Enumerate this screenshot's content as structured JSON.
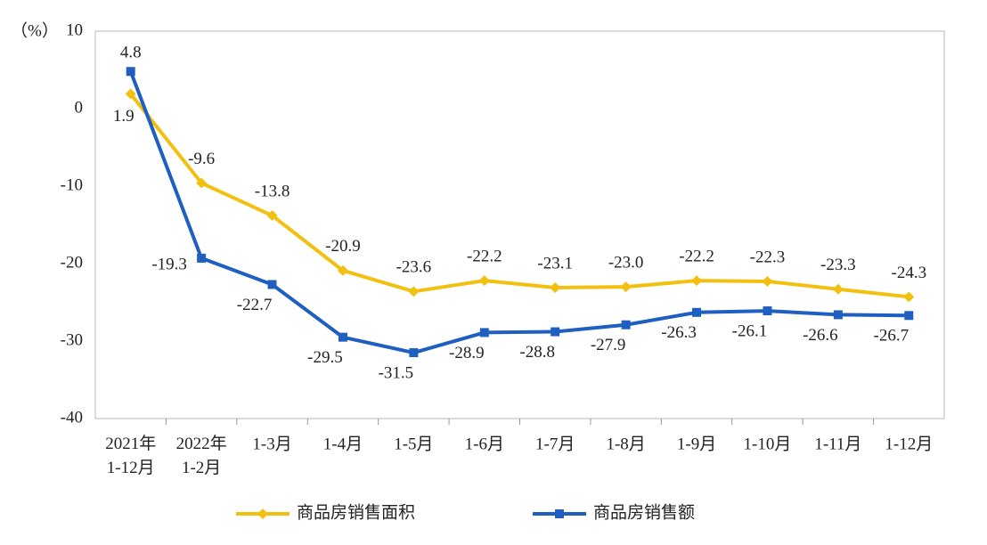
{
  "chart_data": {
    "type": "line",
    "y_unit": "（%）",
    "categories": [
      "2021年\n1-12月",
      "2022年\n1-2月",
      "1-3月",
      "1-4月",
      "1-5月",
      "1-6月",
      "1-7月",
      "1-8月",
      "1-9月",
      "1-10月",
      "1-11月",
      "1-12月"
    ],
    "series": [
      {
        "name": "商品房销售面积",
        "color": "#f2c010",
        "marker": "diamond",
        "values": [
          1.9,
          -9.6,
          -13.8,
          -20.9,
          -23.6,
          -22.2,
          -23.1,
          -23.0,
          -22.2,
          -22.3,
          -23.3,
          -24.3
        ],
        "value_labels": [
          "1.9",
          "-9.6",
          "-13.8",
          "-20.9",
          "-23.6",
          "-22.2",
          "-23.1",
          "-23.0",
          "-22.2",
          "-22.3",
          "-23.3",
          "-24.3"
        ]
      },
      {
        "name": "商品房销售额",
        "color": "#1f5fc0",
        "marker": "square",
        "values": [
          4.8,
          -19.3,
          -22.7,
          -29.5,
          -31.5,
          -28.9,
          -28.8,
          -27.9,
          -26.3,
          -26.1,
          -26.6,
          -26.7
        ],
        "value_labels": [
          "4.8",
          "-19.3",
          "-22.7",
          "-29.5",
          "-31.5",
          "-28.9",
          "-28.8",
          "-27.9",
          "-26.3",
          "-26.1",
          "-26.6",
          "-26.7"
        ]
      }
    ],
    "ylim": [
      -40,
      10
    ],
    "yticks": [
      -40,
      -30,
      -20,
      -10,
      0,
      10
    ],
    "grid": false
  }
}
